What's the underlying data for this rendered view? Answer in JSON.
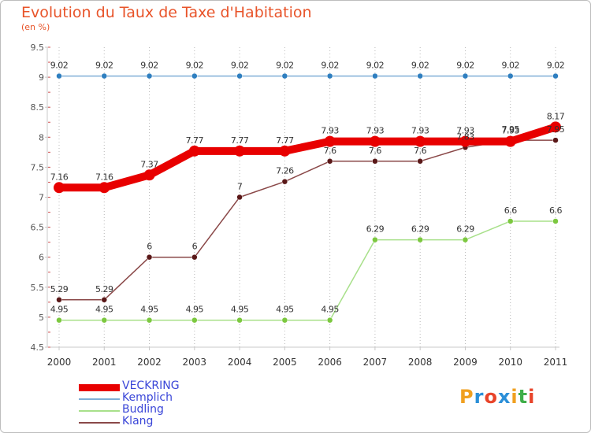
{
  "title": "Evolution du Taux de Taxe d'Habitation",
  "subtitle": "(en %)",
  "logo": {
    "letters": [
      "P",
      "r",
      "o",
      "x",
      "i",
      "t",
      "i"
    ],
    "colors": [
      "#f0a020",
      "#2b8fd8",
      "#e8442a",
      "#2b8fd8",
      "#f0a020",
      "#3fae49",
      "#e8442a"
    ]
  },
  "chart_data": {
    "type": "line",
    "x": [
      "2000",
      "2001",
      "2002",
      "2003",
      "2004",
      "2005",
      "2006",
      "2007",
      "2008",
      "2009",
      "2010",
      "2011"
    ],
    "ylim": [
      4.5,
      9.5
    ],
    "yticks": [
      "4.5",
      "5",
      "5.5",
      "6",
      "6.5",
      "7",
      "7.5",
      "8",
      "8.5",
      "9",
      "9.5"
    ],
    "grid": "vertical dotted",
    "legend_position": "bottom-left",
    "series": [
      {
        "name": "Kemplich",
        "color": "#7faed6",
        "marker": "#2f7fc0",
        "values": [
          9.02,
          9.02,
          9.02,
          9.02,
          9.02,
          9.02,
          9.02,
          9.02,
          9.02,
          9.02,
          9.02,
          9.02
        ],
        "labels": [
          "9.02",
          "9.02",
          "9.02",
          "9.02",
          "9.02",
          "9.02",
          "9.02",
          "9.02",
          "9.02",
          "9.02",
          "9.02",
          "9.02"
        ]
      },
      {
        "name": "Budling",
        "color": "#a8e08a",
        "marker": "#7cc83f",
        "values": [
          4.95,
          4.95,
          4.95,
          4.95,
          4.95,
          4.95,
          4.95,
          6.29,
          6.29,
          6.29,
          6.6,
          6.6
        ],
        "labels": [
          "4.95",
          "4.95",
          "4.95",
          "4.95",
          "4.95",
          "4.95",
          "4.95",
          "6.29",
          "6.29",
          "6.29",
          "6.6",
          "6.6"
        ]
      },
      {
        "name": "Klang",
        "color": "#8a4848",
        "marker": "#5a1818",
        "values": [
          5.29,
          5.29,
          6,
          6,
          7,
          7.26,
          7.6,
          7.6,
          7.6,
          7.83,
          7.95,
          7.95
        ],
        "labels": [
          "5.29",
          "5.29",
          "6",
          "6",
          "7",
          "7.26",
          "7.6",
          "7.6",
          "7.6",
          "7.83",
          "7.95",
          "7.95"
        ]
      },
      {
        "name": "VECKRING",
        "color": "#e80000",
        "marker": "#e80000",
        "values": [
          7.16,
          7.16,
          7.37,
          7.77,
          7.77,
          7.77,
          7.93,
          7.93,
          7.93,
          7.93,
          7.93,
          8.17
        ],
        "labels": [
          "7.16",
          "7.16",
          "7.37",
          "7.77",
          "7.77",
          "7.77",
          "7.93",
          "7.93",
          "7.93",
          "7.93",
          "7.93",
          "8.17"
        ]
      }
    ],
    "legend": [
      "VECKRING",
      "Kemplich",
      "Budling",
      "Klang"
    ]
  }
}
